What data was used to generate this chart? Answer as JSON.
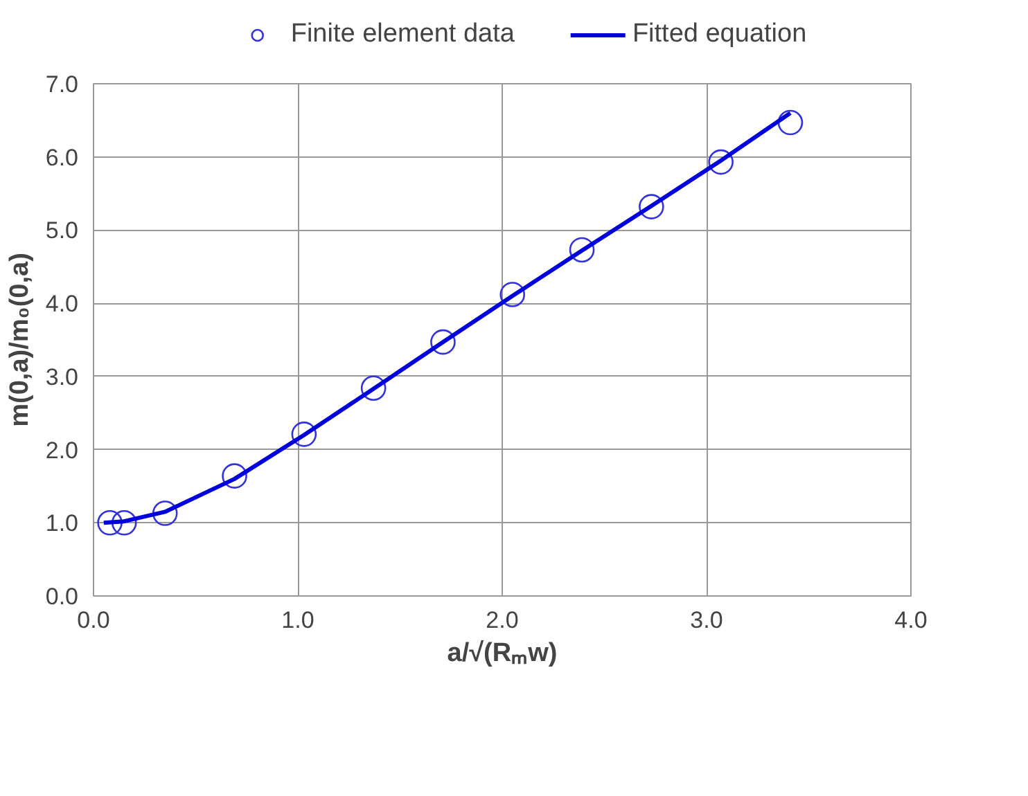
{
  "chart_data": {
    "type": "line",
    "xlabel": "a/√(Rₘw)",
    "ylabel": "m(0,a)/m₀(0,a)",
    "xlim": [
      0,
      4
    ],
    "ylim": [
      0,
      7
    ],
    "xticks": [
      {
        "value": 0,
        "label": "0.0"
      },
      {
        "value": 1,
        "label": "1.0"
      },
      {
        "value": 2,
        "label": "2.0"
      },
      {
        "value": 3,
        "label": "3.0"
      },
      {
        "value": 4,
        "label": "4.0"
      }
    ],
    "yticks": [
      {
        "value": 0,
        "label": "0.0"
      },
      {
        "value": 1,
        "label": "1.0"
      },
      {
        "value": 2,
        "label": "2.0"
      },
      {
        "value": 3,
        "label": "3.0"
      },
      {
        "value": 4,
        "label": "4.0"
      },
      {
        "value": 5,
        "label": "5.0"
      },
      {
        "value": 6,
        "label": "6.0"
      },
      {
        "value": 7,
        "label": "7.0"
      }
    ],
    "grid": true,
    "legend": "top",
    "series": [
      {
        "name": "Finite element data",
        "type": "scatter",
        "marker": "circle",
        "color": "#3333dd",
        "x": [
          0.08,
          0.15,
          0.35,
          0.69,
          1.03,
          1.37,
          1.71,
          2.05,
          2.39,
          2.73,
          3.07,
          3.41
        ],
        "values": [
          1.0,
          1.0,
          1.13,
          1.64,
          2.21,
          2.84,
          3.47,
          4.12,
          4.73,
          5.32,
          5.93,
          6.47
        ]
      },
      {
        "name": "Fitted equation",
        "color": "#0000dd",
        "x": [
          0.05,
          0.15,
          0.35,
          0.69,
          1.03,
          1.37,
          1.71,
          2.05,
          2.39,
          2.73,
          3.07,
          3.41
        ],
        "values": [
          1.0,
          1.02,
          1.15,
          1.6,
          2.2,
          2.83,
          3.47,
          4.1,
          4.72,
          5.33,
          5.95,
          6.6
        ]
      }
    ]
  }
}
